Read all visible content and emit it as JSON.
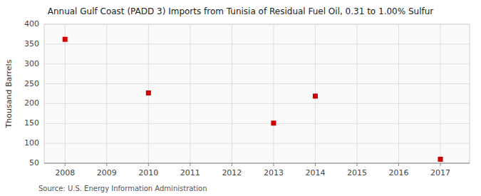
{
  "chart_data": {
    "type": "scatter",
    "title": "Annual Gulf Coast (PADD 3) Imports from Tunisia of Residual Fuel Oil, 0.31 to 1.00% Sulfur",
    "ylabel": "Thousand Barrels",
    "source": "Source: U.S. Energy Information Administration",
    "x": [
      2008,
      2010,
      2013,
      2014,
      2017
    ],
    "values": [
      362,
      227,
      151,
      219,
      60
    ],
    "xlim": [
      2007.5,
      2017.7
    ],
    "ylim": [
      50,
      400
    ],
    "xticks": [
      2008,
      2009,
      2010,
      2011,
      2012,
      2013,
      2014,
      2015,
      2016,
      2017
    ],
    "yticks": [
      50,
      100,
      150,
      200,
      250,
      300,
      350,
      400
    ],
    "color": "#cc0000",
    "marker": "square",
    "grid": true
  }
}
